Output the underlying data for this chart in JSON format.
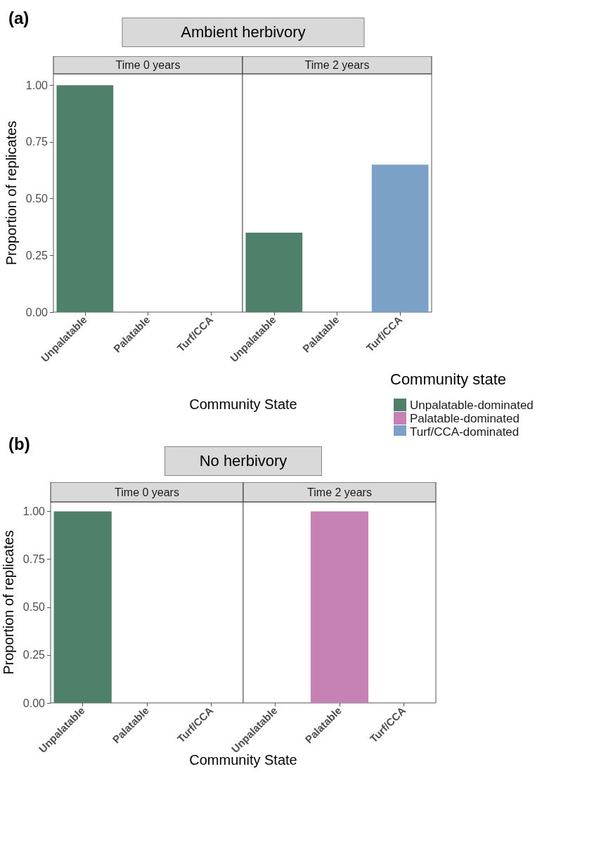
{
  "chart_data": [
    {
      "type": "bar",
      "title": "Ambient herbivory",
      "subtitle": "Time 0 years",
      "annotations": [
        "(a)"
      ],
      "xlabel": "Community State",
      "ylabel": "Proportion of replicates",
      "categories": [
        "Unpalatable",
        "Palatable",
        "Turf/CCA"
      ],
      "values": [
        1,
        0,
        0
      ],
      "colors": [
        "#4f806a",
        "#c682b4",
        "#7ca1c6"
      ],
      "ylim": [
        0,
        1.05
      ],
      "yticks": [
        {
          "value": 0,
          "label": "0.00"
        },
        {
          "value": 0.25,
          "label": "0.25"
        },
        {
          "value": 0.5,
          "label": "0.50"
        },
        {
          "value": 0.75,
          "label": "0.75"
        },
        {
          "value": 1,
          "label": "1.00"
        }
      ]
    },
    {
      "type": "bar",
      "subtitle": "Time 2 years",
      "categories": [
        "Unpalatable",
        "Palatable",
        "Turf/CCA"
      ],
      "stacked": true,
      "legend": "right",
      "legend_title": "Community state",
      "tick_labels": "x",
      "series": [
        {
          "name": "Unpalatable-dominated",
          "color": "#4f806a",
          "values": [
            0.35,
            null,
            null
          ]
        },
        {
          "name": "Palatable-dominated",
          "color": "#c682b4",
          "values": [
            null,
            0,
            null
          ]
        },
        {
          "name": "Turf/CCA-dominated",
          "color": "#7ca1c6",
          "values": [
            null,
            null,
            0.65
          ]
        }
      ],
      "ylim": [
        0,
        1.05
      ]
    },
    {
      "type": "bar",
      "title": "No herbivory",
      "subtitle": "Time 0 years",
      "annotations": [
        "(b)"
      ],
      "xlabel": "Community State",
      "ylabel": "Proportion of replicates",
      "categories": [
        "Unpalatable",
        "Palatable",
        "Turf/CCA"
      ],
      "values": [
        1,
        0,
        0
      ],
      "colors": [
        "#4f806a",
        "#c682b4",
        "#7ca1c6"
      ],
      "ylim": [
        0,
        1.05
      ],
      "yticks": [
        {
          "value": 0,
          "label": "0.00"
        },
        {
          "value": 0.25,
          "label": "0.25"
        },
        {
          "value": 0.5,
          "label": "0.50"
        },
        {
          "value": 0.75,
          "label": "0.75"
        },
        {
          "value": 1,
          "label": "1.00"
        }
      ]
    },
    {
      "type": "bar",
      "subtitle": "Time 2 years",
      "categories": [
        "Unpalatable",
        "Palatable",
        "Turf/CCA"
      ],
      "values": [
        0,
        1,
        0
      ],
      "colors": [
        "#4f806a",
        "#c682b4",
        "#7ca1c6"
      ],
      "tick_labels": "x",
      "ylim": [
        0,
        1.05
      ]
    }
  ]
}
